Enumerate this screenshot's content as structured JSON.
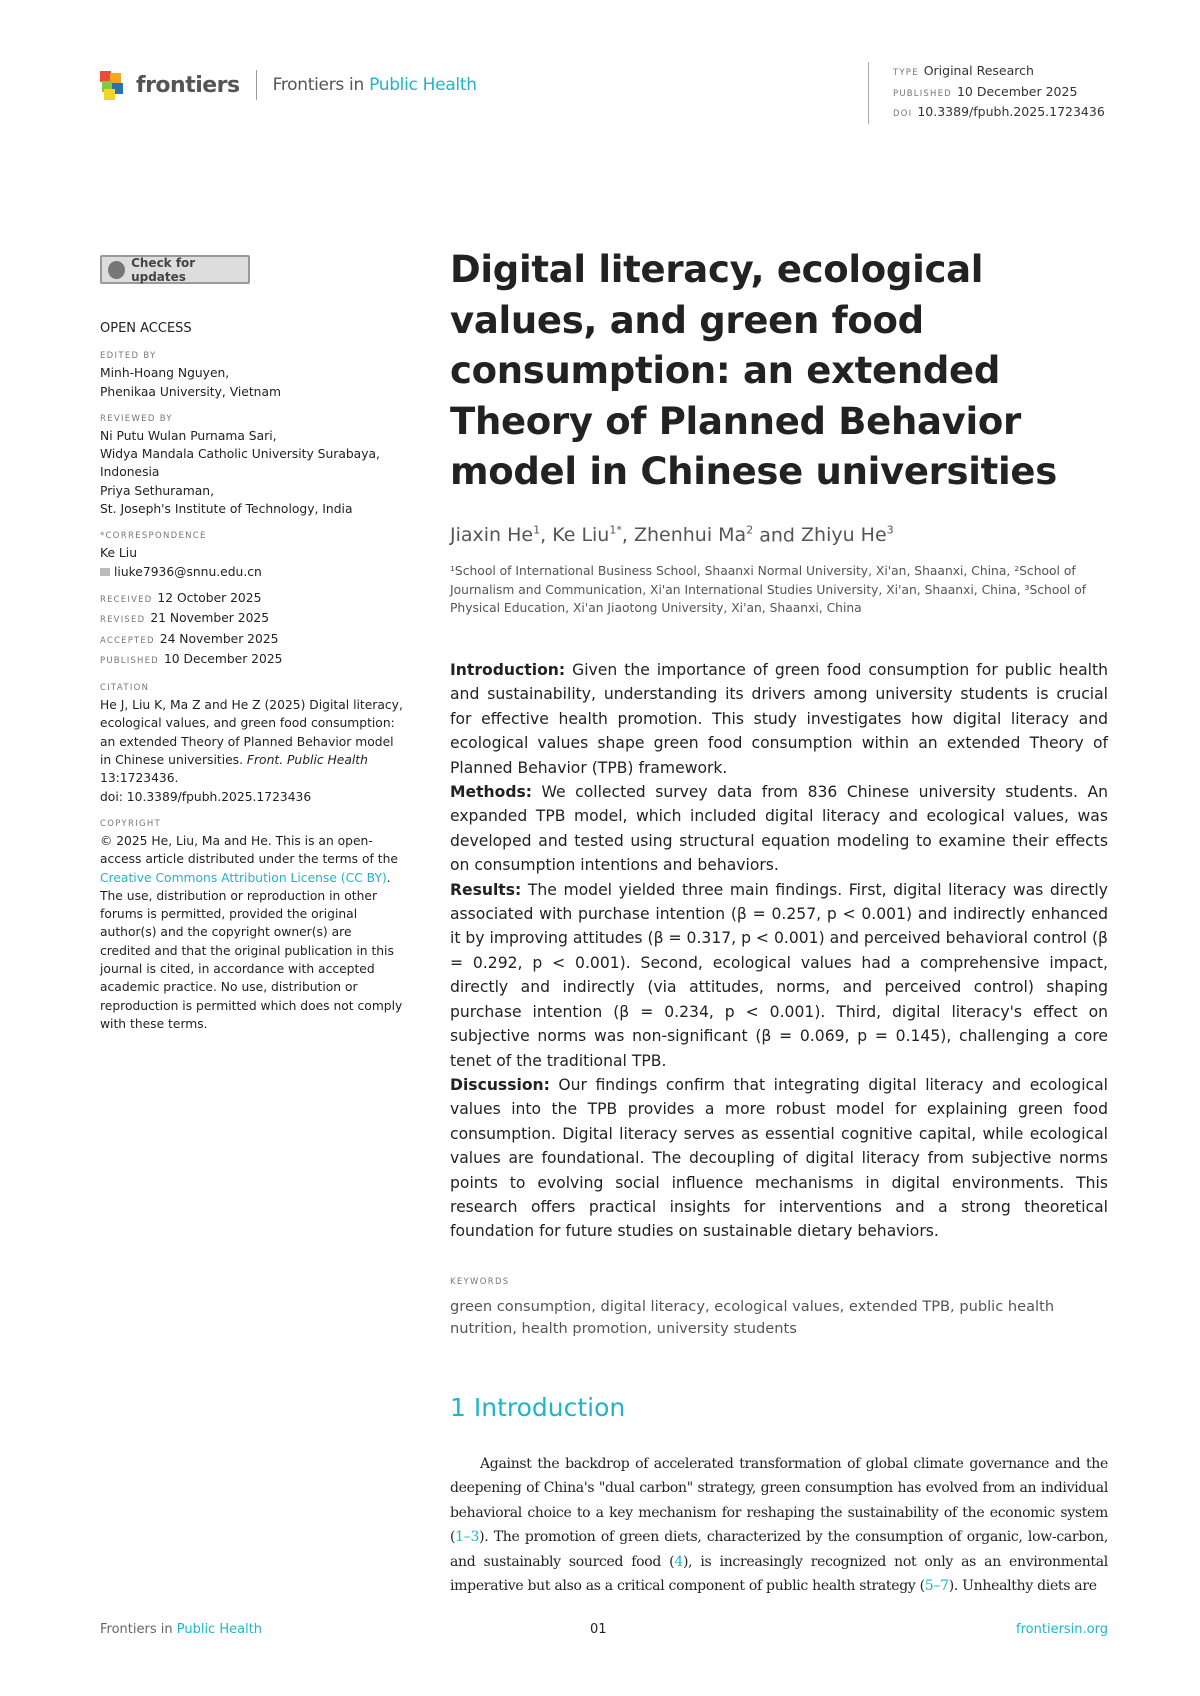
{
  "header": {
    "brand": "frontiers",
    "journal_prefix": "Frontiers in ",
    "journal_name": "Public Health",
    "meta": [
      {
        "label": "TYPE",
        "value": "Original Research"
      },
      {
        "label": "PUBLISHED",
        "value": "10 December 2025"
      },
      {
        "label": "DOI",
        "value": "10.3389/fpubh.2025.1723436"
      }
    ]
  },
  "sidebar": {
    "check_updates": "Check for updates",
    "open_access": "OPEN ACCESS",
    "edited_by_label": "EDITED BY",
    "edited_by": [
      "Minh-Hoang Nguyen,",
      "Phenikaa University, Vietnam"
    ],
    "reviewed_by_label": "REVIEWED BY",
    "reviewed_by": [
      "Ni Putu Wulan Purnama Sari,",
      "Widya Mandala Catholic University Surabaya,",
      "Indonesia",
      "Priya Sethuraman,",
      "St. Joseph's Institute of Technology, India"
    ],
    "correspondence_label": "*CORRESPONDENCE",
    "correspondence_name": "Ke Liu",
    "correspondence_email": "liuke7936@snnu.edu.cn",
    "dates": [
      {
        "label": "RECEIVED",
        "value": "12 October 2025"
      },
      {
        "label": "REVISED",
        "value": "21 November 2025"
      },
      {
        "label": "ACCEPTED",
        "value": "24 November 2025"
      },
      {
        "label": "PUBLISHED",
        "value": "10 December 2025"
      }
    ],
    "citation_label": "CITATION",
    "citation_text": "He J, Liu K, Ma Z and He Z (2025) Digital literacy, ecological values, and green food consumption: an extended Theory of Planned Behavior model in Chinese universities.",
    "citation_journal": "Front. Public Health",
    "citation_vol": " 13:1723436.",
    "citation_doi": "doi: 10.3389/fpubh.2025.1723436",
    "copyright_label": "COPYRIGHT",
    "copyright_pre": "© 2025 He, Liu, Ma and He. This is an open-access article distributed under the terms of the ",
    "copyright_link": "Creative Commons Attribution License (CC BY)",
    "copyright_post": ". The use, distribution or reproduction in other forums is permitted, provided the original author(s) and the copyright owner(s) are credited and that the original publication in this journal is cited, in accordance with accepted academic practice. No use, distribution or reproduction is permitted which does not comply with these terms."
  },
  "article": {
    "title": "Digital literacy, ecological values, and green food consumption: an extended Theory of Planned Behavior model in Chinese universities",
    "authors": [
      {
        "name": "Jiaxin He",
        "sup": "1"
      },
      {
        "name": "Ke Liu",
        "sup": "1*"
      },
      {
        "name": "Zhenhui Ma",
        "sup": "2"
      },
      {
        "name": "Zhiyu He",
        "sup": "3"
      }
    ],
    "affiliations": "¹School of International Business School, Shaanxi Normal University, Xi'an, Shaanxi, China, ²School of Journalism and Communication, Xi'an International Studies University, Xi'an, Shaanxi, China, ³School of Physical Education, Xi'an Jiaotong University, Xi'an, Shaanxi, China",
    "abstract": [
      {
        "head": "Introduction:",
        "text": " Given the importance of green food consumption for public health and sustainability, understanding its drivers among university students is crucial for effective health promotion. This study investigates how digital literacy and ecological values shape green food consumption within an extended Theory of Planned Behavior (TPB) framework."
      },
      {
        "head": "Methods:",
        "text": " We collected survey data from 836 Chinese university students. An expanded TPB model, which included digital literacy and ecological values, was developed and tested using structural equation modeling to examine their effects on consumption intentions and behaviors."
      },
      {
        "head": "Results:",
        "text": " The model yielded three main findings. First, digital literacy was directly associated with purchase intention (β = 0.257, p < 0.001) and indirectly enhanced it by improving attitudes (β = 0.317, p < 0.001) and perceived behavioral control (β = 0.292, p < 0.001). Second, ecological values had a comprehensive impact, directly and indirectly (via attitudes, norms, and perceived control) shaping purchase intention (β = 0.234, p < 0.001). Third, digital literacy's effect on subjective norms was non-significant (β = 0.069, p = 0.145), challenging a core tenet of the traditional TPB."
      },
      {
        "head": "Discussion:",
        "text": " Our findings confirm that integrating digital literacy and ecological values into the TPB provides a more robust model for explaining green food consumption. Digital literacy serves as essential cognitive capital, while ecological values are foundational. The decoupling of digital literacy from subjective norms points to evolving social influence mechanisms in digital environments. This research offers practical insights for interventions and a strong theoretical foundation for future studies on sustainable dietary behaviors."
      }
    ],
    "keywords_label": "KEYWORDS",
    "keywords": "green consumption, digital literacy, ecological values, extended TPB, public health nutrition, health promotion, university students",
    "section_heading": "1 Introduction",
    "intro_parts": [
      "Against the backdrop of accelerated transformation of global climate governance and the deepening of China's \"dual carbon\" strategy, green consumption has evolved from an individual behavioral choice to a key mechanism for reshaping the sustainability of the economic system (",
      "1–3",
      "). The promotion of green diets, characterized by the consumption of organic, low-carbon, and sustainably sourced food (",
      "4",
      "), is increasingly recognized not only as an environmental imperative but also as a critical component of public health strategy (",
      "5–7",
      "). Unhealthy diets are"
    ]
  },
  "footer": {
    "journal_prefix": "Frontiers in ",
    "journal_name": "Public Health",
    "page": "01",
    "site": "frontiersin.org"
  },
  "colors": {
    "accent": "#1fb5c8"
  }
}
